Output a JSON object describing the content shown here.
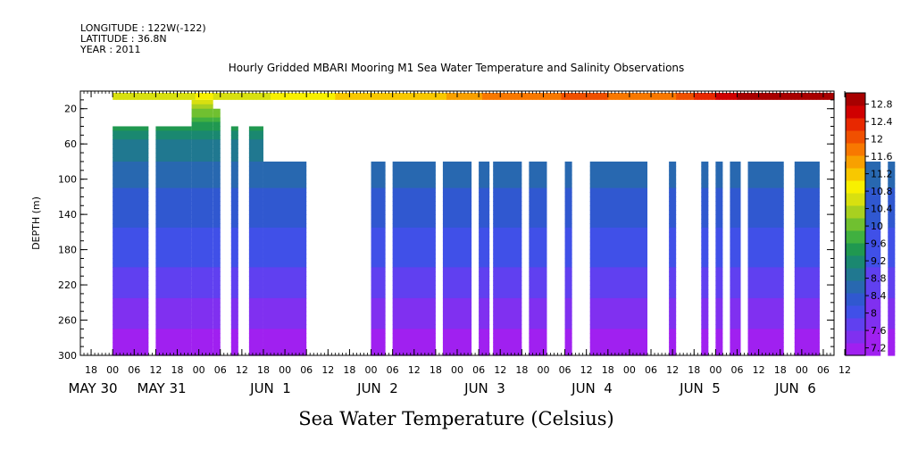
{
  "header": {
    "longitude": "LONGITUDE : 122W(-122)",
    "latitude": "LATITUDE : 36.8N",
    "year": "YEAR : 2011"
  },
  "chart_data": {
    "type": "heatmap",
    "title": "Hourly Gridded MBARI Mooring M1 Sea Water Temperature and Salinity Observations",
    "xlabel": "Sea Water Temperature (Celsius)",
    "ylabel": "DEPTH (m)",
    "y_ticks": [
      "20",
      "60",
      "100",
      "140",
      "180",
      "220",
      "260",
      "300"
    ],
    "ylim": [
      0,
      300
    ],
    "y_inverted": true,
    "x_hour_ticks": [
      "18",
      "00",
      "06",
      "12",
      "18",
      "00",
      "06",
      "12",
      "18",
      "00",
      "06",
      "12",
      "18",
      "00",
      "06",
      "12",
      "18",
      "00",
      "06",
      "12",
      "18",
      "00",
      "06",
      "12",
      "18",
      "00",
      "06",
      "12",
      "18",
      "00",
      "06",
      "12",
      "18",
      "00",
      "06",
      "12"
    ],
    "x_day_labels": [
      "MAY 30",
      "MAY 31",
      "JUN  1",
      "JUN  2",
      "JUN  3",
      "JUN  4",
      "JUN  5",
      "JUN  6"
    ],
    "x_start_hour_may30": 15,
    "x_end_hour_may30": 225,
    "colorbar": {
      "levels": [
        7.2,
        7.6,
        8,
        8.4,
        8.8,
        9.2,
        9.6,
        10,
        10.4,
        10.8,
        11.2,
        11.6,
        12,
        12.4,
        12.8
      ],
      "labels": [
        "7.2",
        "7.6",
        "8",
        "8.4",
        "8.8",
        "9.2",
        "9.6",
        "10",
        "10.4",
        "10.8",
        "11.2",
        "11.6",
        "12",
        "12.4",
        "12.8"
      ],
      "colors": [
        "#a020f0",
        "#8030f0",
        "#6040f0",
        "#4050e8",
        "#3058d0",
        "#2868b0",
        "#207890",
        "#1a8870",
        "#209850",
        "#40b040",
        "#70c030",
        "#a8d020",
        "#d8e010",
        "#f8f000",
        "#f8c800",
        "#f8a000",
        "#f87800",
        "#f05000",
        "#e82800",
        "#d00000",
        "#a80000"
      ]
    },
    "surface_band": {
      "depth_top": 2,
      "depth_bottom": 10,
      "start_hour": 24,
      "end_hour": 225,
      "temperature_trend": [
        [
          24,
          10.6
        ],
        [
          40,
          10.5
        ],
        [
          48,
          10.7
        ],
        [
          60,
          10.6
        ],
        [
          72,
          10.7
        ],
        [
          90,
          11.0
        ],
        [
          100,
          11.1
        ],
        [
          110,
          11.0
        ],
        [
          120,
          11.3
        ],
        [
          132,
          11.6
        ],
        [
          144,
          11.7
        ],
        [
          160,
          11.8
        ],
        [
          168,
          11.5
        ],
        [
          180,
          11.7
        ],
        [
          190,
          12.2
        ],
        [
          200,
          12.6
        ],
        [
          212,
          12.8
        ],
        [
          225,
          12.8
        ]
      ]
    },
    "data_blocks": [
      {
        "start": 24,
        "end": 34,
        "top": 40
      },
      {
        "start": 36,
        "end": 46,
        "top": 40
      },
      {
        "start": 46,
        "end": 52,
        "top": 10
      },
      {
        "start": 52,
        "end": 54,
        "top": 20
      },
      {
        "start": 57,
        "end": 59,
        "top": 40
      },
      {
        "start": 62,
        "end": 66,
        "top": 40
      },
      {
        "start": 66,
        "end": 78,
        "top": 80
      },
      {
        "start": 96,
        "end": 100,
        "top": 80
      },
      {
        "start": 102,
        "end": 114,
        "top": 80
      },
      {
        "start": 116,
        "end": 124,
        "top": 80
      },
      {
        "start": 126,
        "end": 129,
        "top": 80
      },
      {
        "start": 130,
        "end": 138,
        "top": 80
      },
      {
        "start": 140,
        "end": 145,
        "top": 80
      },
      {
        "start": 150,
        "end": 152,
        "top": 80
      },
      {
        "start": 157,
        "end": 173,
        "top": 80
      },
      {
        "start": 179,
        "end": 181,
        "top": 80
      },
      {
        "start": 188,
        "end": 190,
        "top": 80
      },
      {
        "start": 192,
        "end": 194,
        "top": 80
      },
      {
        "start": 196,
        "end": 199,
        "top": 80
      },
      {
        "start": 201,
        "end": 211,
        "top": 80
      },
      {
        "start": 214,
        "end": 221,
        "top": 80
      },
      {
        "start": 228,
        "end": 238,
        "top": 80
      },
      {
        "start": 240,
        "end": 242,
        "top": 80
      },
      {
        "start": 244,
        "end": 247,
        "top": 80
      }
    ],
    "depth_profile": [
      [
        10,
        10.6
      ],
      [
        20,
        10.2
      ],
      [
        40,
        9.4
      ],
      [
        60,
        9.0
      ],
      [
        80,
        8.8
      ],
      [
        100,
        8.6
      ],
      [
        120,
        8.45
      ],
      [
        140,
        8.35
      ],
      [
        160,
        8.25
      ],
      [
        180,
        8.1
      ],
      [
        200,
        8.0
      ],
      [
        220,
        7.85
      ],
      [
        240,
        7.7
      ],
      [
        260,
        7.55
      ],
      [
        280,
        7.4
      ],
      [
        300,
        7.3
      ]
    ]
  }
}
